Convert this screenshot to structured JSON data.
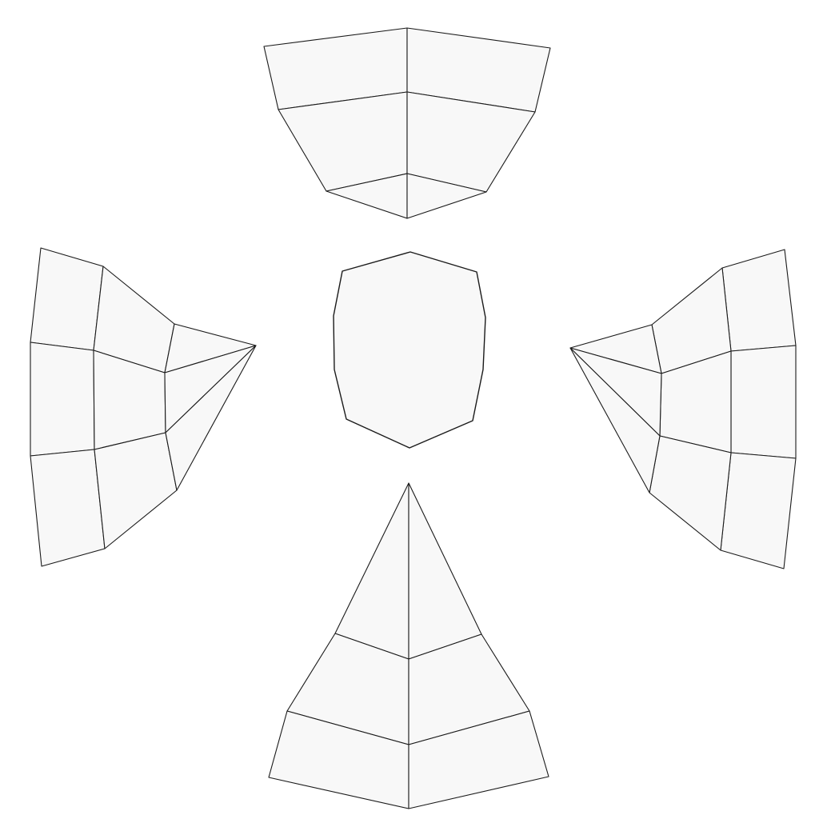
{
  "diagram": {
    "kind": "polyhedron-net",
    "face_fill": "#f8f8f8",
    "edge_color": "#1a1a1a",
    "background": "#ffffff",
    "pieces": [
      {
        "id": "net-top",
        "description": "flap-up"
      },
      {
        "id": "net-left",
        "description": "flap-left"
      },
      {
        "id": "net-center",
        "description": "hub"
      },
      {
        "id": "net-right",
        "description": "flap-right"
      },
      {
        "id": "net-bottom",
        "description": "flap-down"
      }
    ]
  }
}
